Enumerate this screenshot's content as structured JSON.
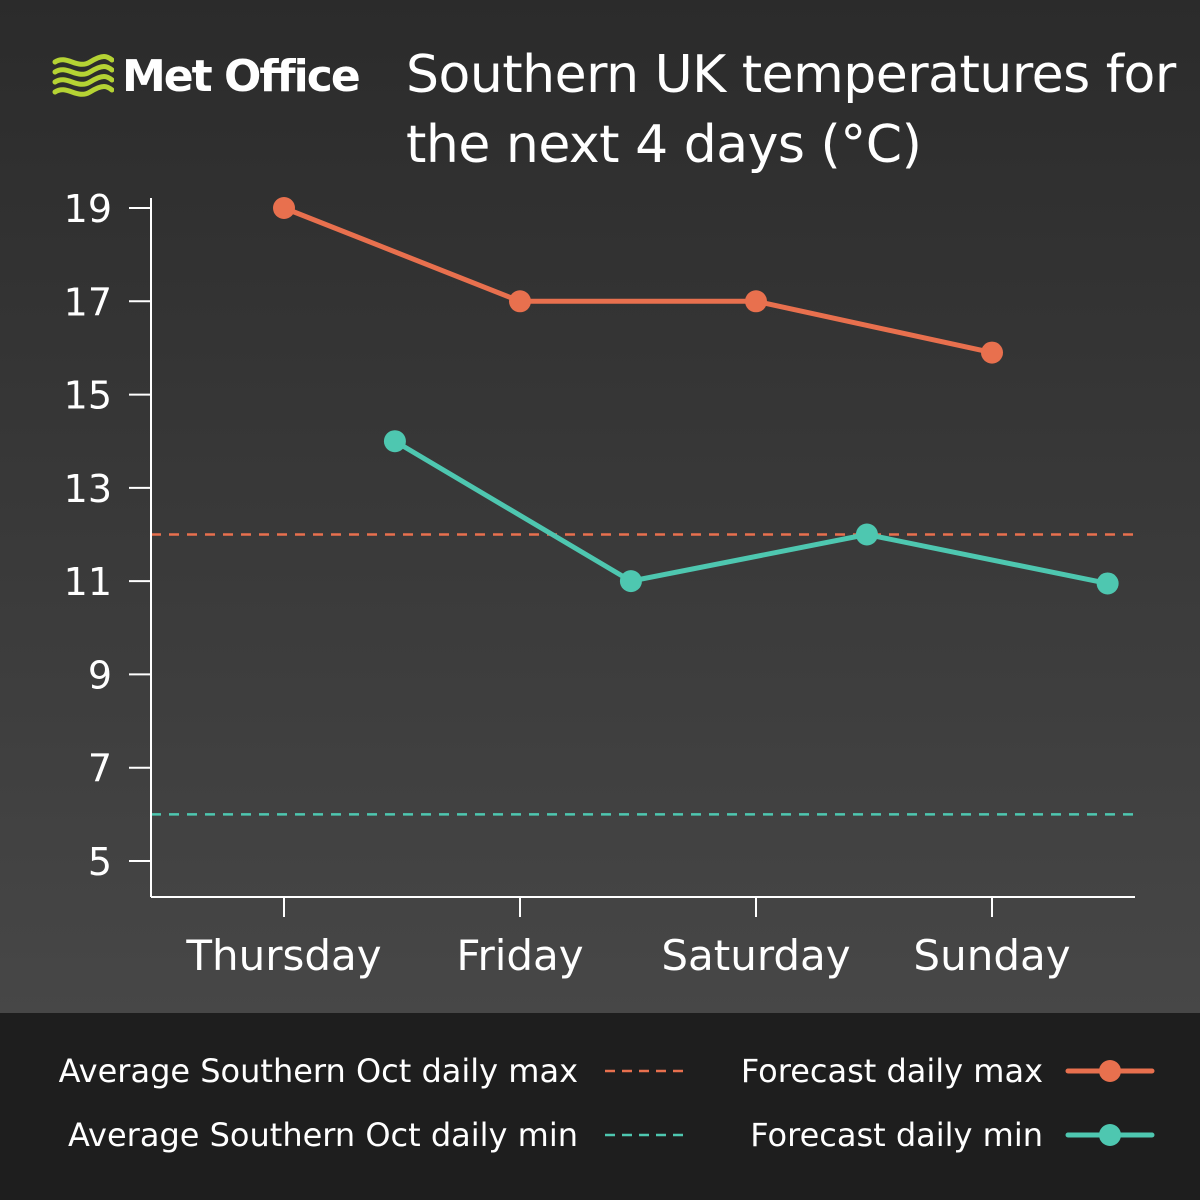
{
  "brand": {
    "name": "Met Office",
    "logo_icon": "met-office-wave-icon",
    "logo_color": "#b5d334"
  },
  "colors": {
    "max": "#e8704e",
    "min": "#4ec7b0",
    "axis": "#ffffff",
    "background": "#2b2b2b",
    "legend_background": "#1e1e1e"
  },
  "chart_data": {
    "type": "line",
    "title": "Southern UK temperatures for the next 4 days (°C)",
    "categories": [
      "Thursday",
      "Friday",
      "Saturday",
      "Sunday"
    ],
    "yticks": [
      5,
      7,
      9,
      11,
      13,
      15,
      17,
      19
    ],
    "ylim": [
      4.2,
      19
    ],
    "series": [
      {
        "name": "Forecast daily max",
        "color": "#e8704e",
        "points": [
          {
            "x": 0.0,
            "y": 19
          },
          {
            "x": 1.0,
            "y": 17
          },
          {
            "x": 2.0,
            "y": 17
          },
          {
            "x": 3.0,
            "y": 15.9
          }
        ]
      },
      {
        "name": "Forecast daily min",
        "color": "#4ec7b0",
        "points": [
          {
            "x": 0.47,
            "y": 14
          },
          {
            "x": 1.47,
            "y": 11
          },
          {
            "x": 2.47,
            "y": 12
          },
          {
            "x": 3.49,
            "y": 10.95
          }
        ]
      }
    ],
    "reference_lines": [
      {
        "name": "Average Southern Oct daily max",
        "y": 12,
        "color": "#e8704e",
        "style": "dashed"
      },
      {
        "name": "Average Southern Oct daily min",
        "y": 6,
        "color": "#4ec7b0",
        "style": "dashed"
      }
    ],
    "legend": {
      "placement": "bottom",
      "items": [
        {
          "label": "Average Southern Oct daily max",
          "style": "dashed",
          "color": "#e8704e"
        },
        {
          "label": "Forecast daily max",
          "style": "line-marker",
          "color": "#e8704e"
        },
        {
          "label": "Average Southern Oct daily min",
          "style": "dashed",
          "color": "#4ec7b0"
        },
        {
          "label": "Forecast daily min",
          "style": "line-marker",
          "color": "#4ec7b0"
        }
      ]
    }
  }
}
